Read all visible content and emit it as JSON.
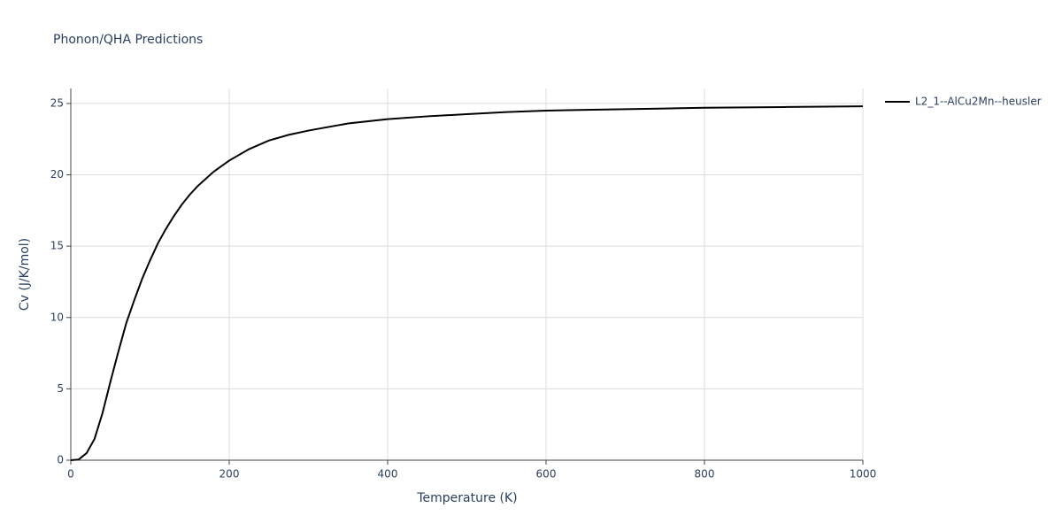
{
  "chart_data": {
    "type": "line",
    "title": "Phonon/QHA Predictions",
    "x_label": "Temperature (K)",
    "y_label": "Cv (J/K/mol)",
    "x": [
      0,
      10,
      20,
      30,
      40,
      50,
      60,
      70,
      80,
      90,
      100,
      110,
      120,
      130,
      140,
      150,
      160,
      170,
      180,
      190,
      200,
      225,
      250,
      275,
      300,
      350,
      400,
      450,
      500,
      550,
      600,
      650,
      700,
      750,
      800,
      900,
      1000
    ],
    "series": [
      {
        "name": "L2_1--AlCu2Mn--heusler",
        "color": "#000000",
        "values": [
          0,
          0.05,
          0.5,
          1.5,
          3.3,
          5.5,
          7.6,
          9.6,
          11.2,
          12.7,
          14.0,
          15.2,
          16.2,
          17.1,
          17.9,
          18.6,
          19.2,
          19.7,
          20.2,
          20.6,
          21.0,
          21.8,
          22.4,
          22.8,
          23.1,
          23.6,
          23.9,
          24.1,
          24.25,
          24.4,
          24.5,
          24.55,
          24.6,
          24.65,
          24.7,
          24.75,
          24.8
        ]
      }
    ],
    "xlim": [
      0,
      1000
    ],
    "ylim": [
      0,
      26.05
    ],
    "xticks": [
      0,
      200,
      400,
      600,
      800,
      1000
    ],
    "yticks": [
      0,
      5,
      10,
      15,
      20,
      25
    ],
    "grid": true,
    "legend": "right"
  }
}
